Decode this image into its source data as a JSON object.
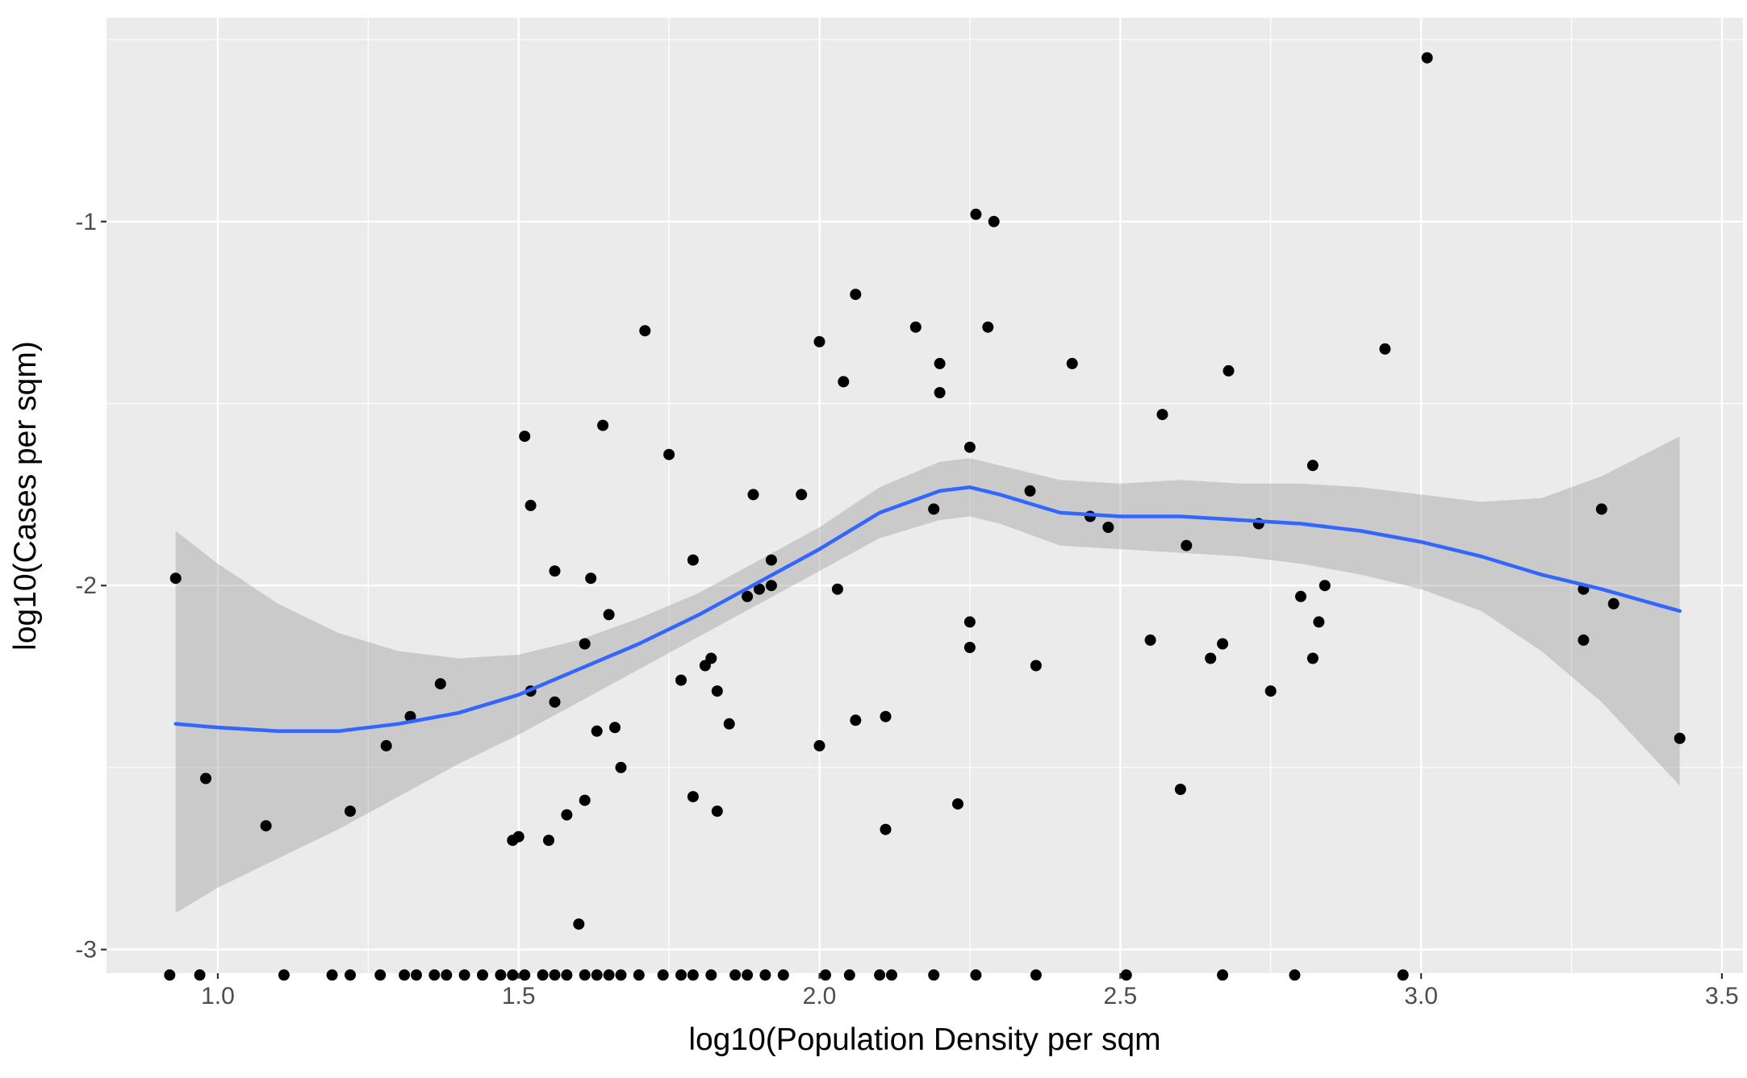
{
  "chart_data": {
    "type": "scatter",
    "title": "",
    "xlabel": "log10(Population Density per sqm",
    "ylabel": "log10(Cases per sqm)",
    "xlim": [
      0.815,
      3.535
    ],
    "ylim": [
      -3.065,
      -0.44
    ],
    "x_ticks": [
      1.0,
      1.5,
      2.0,
      2.5,
      3.0,
      3.5
    ],
    "x_tick_labels": [
      "1.0",
      "1.5",
      "2.0",
      "2.5",
      "3.0",
      "3.5"
    ],
    "y_ticks": [
      -3,
      -2,
      -1
    ],
    "y_tick_labels": [
      "-3",
      "-2",
      "-1"
    ],
    "grid": true,
    "background": "#EBEBEB",
    "colors": {
      "points": "#000000",
      "smooth_line": "#3366FF",
      "ribbon": "#999999"
    },
    "points": [
      {
        "x": 0.93,
        "y": -1.98
      },
      {
        "x": 0.98,
        "y": -2.53
      },
      {
        "x": 1.08,
        "y": -2.66
      },
      {
        "x": 1.22,
        "y": -2.62
      },
      {
        "x": 1.28,
        "y": -2.44
      },
      {
        "x": 1.32,
        "y": -2.36
      },
      {
        "x": 1.37,
        "y": -2.27
      },
      {
        "x": 1.49,
        "y": -2.7
      },
      {
        "x": 1.5,
        "y": -2.69
      },
      {
        "x": 1.51,
        "y": -1.59
      },
      {
        "x": 1.52,
        "y": -1.78
      },
      {
        "x": 1.52,
        "y": -2.29
      },
      {
        "x": 1.55,
        "y": -2.7
      },
      {
        "x": 1.56,
        "y": -1.96
      },
      {
        "x": 1.56,
        "y": -2.32
      },
      {
        "x": 1.58,
        "y": -2.63
      },
      {
        "x": 1.6,
        "y": -2.93
      },
      {
        "x": 1.61,
        "y": -2.59
      },
      {
        "x": 1.61,
        "y": -2.16
      },
      {
        "x": 1.62,
        "y": -1.98
      },
      {
        "x": 1.63,
        "y": -2.4
      },
      {
        "x": 1.64,
        "y": -1.56
      },
      {
        "x": 1.65,
        "y": -2.08
      },
      {
        "x": 1.66,
        "y": -2.39
      },
      {
        "x": 1.67,
        "y": -2.5
      },
      {
        "x": 1.71,
        "y": -1.3
      },
      {
        "x": 1.75,
        "y": -1.64
      },
      {
        "x": 1.77,
        "y": -2.26
      },
      {
        "x": 1.79,
        "y": -1.93
      },
      {
        "x": 1.79,
        "y": -2.58
      },
      {
        "x": 1.81,
        "y": -2.22
      },
      {
        "x": 1.82,
        "y": -2.2
      },
      {
        "x": 1.83,
        "y": -2.29
      },
      {
        "x": 1.83,
        "y": -2.62
      },
      {
        "x": 1.85,
        "y": -2.38
      },
      {
        "x": 1.88,
        "y": -2.03
      },
      {
        "x": 1.89,
        "y": -1.75
      },
      {
        "x": 1.9,
        "y": -2.01
      },
      {
        "x": 1.92,
        "y": -1.93
      },
      {
        "x": 1.92,
        "y": -2.0
      },
      {
        "x": 1.97,
        "y": -1.75
      },
      {
        "x": 2.0,
        "y": -1.33
      },
      {
        "x": 2.0,
        "y": -2.44
      },
      {
        "x": 2.03,
        "y": -2.01
      },
      {
        "x": 2.04,
        "y": -1.44
      },
      {
        "x": 2.06,
        "y": -2.37
      },
      {
        "x": 2.06,
        "y": -1.2
      },
      {
        "x": 2.11,
        "y": -2.36
      },
      {
        "x": 2.11,
        "y": -2.67
      },
      {
        "x": 2.16,
        "y": -1.29
      },
      {
        "x": 2.19,
        "y": -1.79
      },
      {
        "x": 2.2,
        "y": -1.39
      },
      {
        "x": 2.2,
        "y": -1.47
      },
      {
        "x": 2.23,
        "y": -2.6
      },
      {
        "x": 2.25,
        "y": -2.1
      },
      {
        "x": 2.25,
        "y": -2.17
      },
      {
        "x": 2.25,
        "y": -1.62
      },
      {
        "x": 2.26,
        "y": -0.98
      },
      {
        "x": 2.28,
        "y": -1.29
      },
      {
        "x": 2.29,
        "y": -1.0
      },
      {
        "x": 2.35,
        "y": -1.74
      },
      {
        "x": 2.36,
        "y": -2.22
      },
      {
        "x": 2.42,
        "y": -1.39
      },
      {
        "x": 2.45,
        "y": -1.81
      },
      {
        "x": 2.48,
        "y": -1.84
      },
      {
        "x": 2.55,
        "y": -2.15
      },
      {
        "x": 2.57,
        "y": -1.53
      },
      {
        "x": 2.6,
        "y": -2.56
      },
      {
        "x": 2.61,
        "y": -1.89
      },
      {
        "x": 2.65,
        "y": -2.2
      },
      {
        "x": 2.67,
        "y": -2.16
      },
      {
        "x": 2.68,
        "y": -1.41
      },
      {
        "x": 2.73,
        "y": -1.83
      },
      {
        "x": 2.75,
        "y": -2.29
      },
      {
        "x": 2.8,
        "y": -2.03
      },
      {
        "x": 2.82,
        "y": -2.2
      },
      {
        "x": 2.82,
        "y": -1.67
      },
      {
        "x": 2.83,
        "y": -2.1
      },
      {
        "x": 2.84,
        "y": -2.0
      },
      {
        "x": 2.94,
        "y": -1.35
      },
      {
        "x": 3.01,
        "y": -0.55
      },
      {
        "x": 3.27,
        "y": -2.01
      },
      {
        "x": 3.27,
        "y": -2.15
      },
      {
        "x": 3.3,
        "y": -1.79
      },
      {
        "x": 3.32,
        "y": -2.05
      },
      {
        "x": 3.43,
        "y": -2.42
      },
      {
        "x": 0.92,
        "y": -3.07
      },
      {
        "x": 0.97,
        "y": -3.07
      },
      {
        "x": 1.11,
        "y": -3.07
      },
      {
        "x": 1.19,
        "y": -3.07
      },
      {
        "x": 1.22,
        "y": -3.07
      },
      {
        "x": 1.27,
        "y": -3.07
      },
      {
        "x": 1.31,
        "y": -3.07
      },
      {
        "x": 1.33,
        "y": -3.07
      },
      {
        "x": 1.36,
        "y": -3.07
      },
      {
        "x": 1.38,
        "y": -3.07
      },
      {
        "x": 1.41,
        "y": -3.07
      },
      {
        "x": 1.44,
        "y": -3.07
      },
      {
        "x": 1.47,
        "y": -3.07
      },
      {
        "x": 1.49,
        "y": -3.07
      },
      {
        "x": 1.51,
        "y": -3.07
      },
      {
        "x": 1.54,
        "y": -3.07
      },
      {
        "x": 1.56,
        "y": -3.07
      },
      {
        "x": 1.58,
        "y": -3.07
      },
      {
        "x": 1.61,
        "y": -3.07
      },
      {
        "x": 1.63,
        "y": -3.07
      },
      {
        "x": 1.65,
        "y": -3.07
      },
      {
        "x": 1.67,
        "y": -3.07
      },
      {
        "x": 1.7,
        "y": -3.07
      },
      {
        "x": 1.74,
        "y": -3.07
      },
      {
        "x": 1.77,
        "y": -3.07
      },
      {
        "x": 1.79,
        "y": -3.07
      },
      {
        "x": 1.82,
        "y": -3.07
      },
      {
        "x": 1.86,
        "y": -3.07
      },
      {
        "x": 1.88,
        "y": -3.07
      },
      {
        "x": 1.91,
        "y": -3.07
      },
      {
        "x": 1.94,
        "y": -3.07
      },
      {
        "x": 2.01,
        "y": -3.07
      },
      {
        "x": 2.05,
        "y": -3.07
      },
      {
        "x": 2.1,
        "y": -3.07
      },
      {
        "x": 2.12,
        "y": -3.07
      },
      {
        "x": 2.19,
        "y": -3.07
      },
      {
        "x": 2.26,
        "y": -3.07
      },
      {
        "x": 2.36,
        "y": -3.07
      },
      {
        "x": 2.51,
        "y": -3.07
      },
      {
        "x": 2.67,
        "y": -3.07
      },
      {
        "x": 2.79,
        "y": -3.07
      },
      {
        "x": 2.97,
        "y": -3.07
      }
    ],
    "smooth": {
      "method": "loess",
      "x": [
        0.93,
        1.0,
        1.1,
        1.2,
        1.3,
        1.4,
        1.5,
        1.6,
        1.7,
        1.8,
        1.9,
        2.0,
        2.1,
        2.2,
        2.25,
        2.3,
        2.4,
        2.5,
        2.6,
        2.7,
        2.8,
        2.9,
        3.0,
        3.1,
        3.2,
        3.3,
        3.43
      ],
      "y": [
        -2.38,
        -2.39,
        -2.4,
        -2.4,
        -2.38,
        -2.35,
        -2.3,
        -2.23,
        -2.16,
        -2.08,
        -1.99,
        -1.9,
        -1.8,
        -1.74,
        -1.73,
        -1.75,
        -1.8,
        -1.81,
        -1.81,
        -1.82,
        -1.83,
        -1.85,
        -1.88,
        -1.92,
        -1.97,
        -2.01,
        -2.07
      ],
      "lower": [
        -2.9,
        -2.83,
        -2.75,
        -2.67,
        -2.58,
        -2.49,
        -2.41,
        -2.32,
        -2.23,
        -2.14,
        -2.05,
        -1.96,
        -1.87,
        -1.82,
        -1.81,
        -1.83,
        -1.89,
        -1.9,
        -1.91,
        -1.92,
        -1.94,
        -1.97,
        -2.01,
        -2.07,
        -2.18,
        -2.32,
        -2.55
      ],
      "upper": [
        -1.85,
        -1.94,
        -2.05,
        -2.13,
        -2.18,
        -2.2,
        -2.19,
        -2.15,
        -2.09,
        -2.02,
        -1.93,
        -1.84,
        -1.73,
        -1.66,
        -1.65,
        -1.67,
        -1.71,
        -1.72,
        -1.71,
        -1.72,
        -1.72,
        -1.73,
        -1.75,
        -1.77,
        -1.76,
        -1.7,
        -1.59
      ]
    }
  }
}
